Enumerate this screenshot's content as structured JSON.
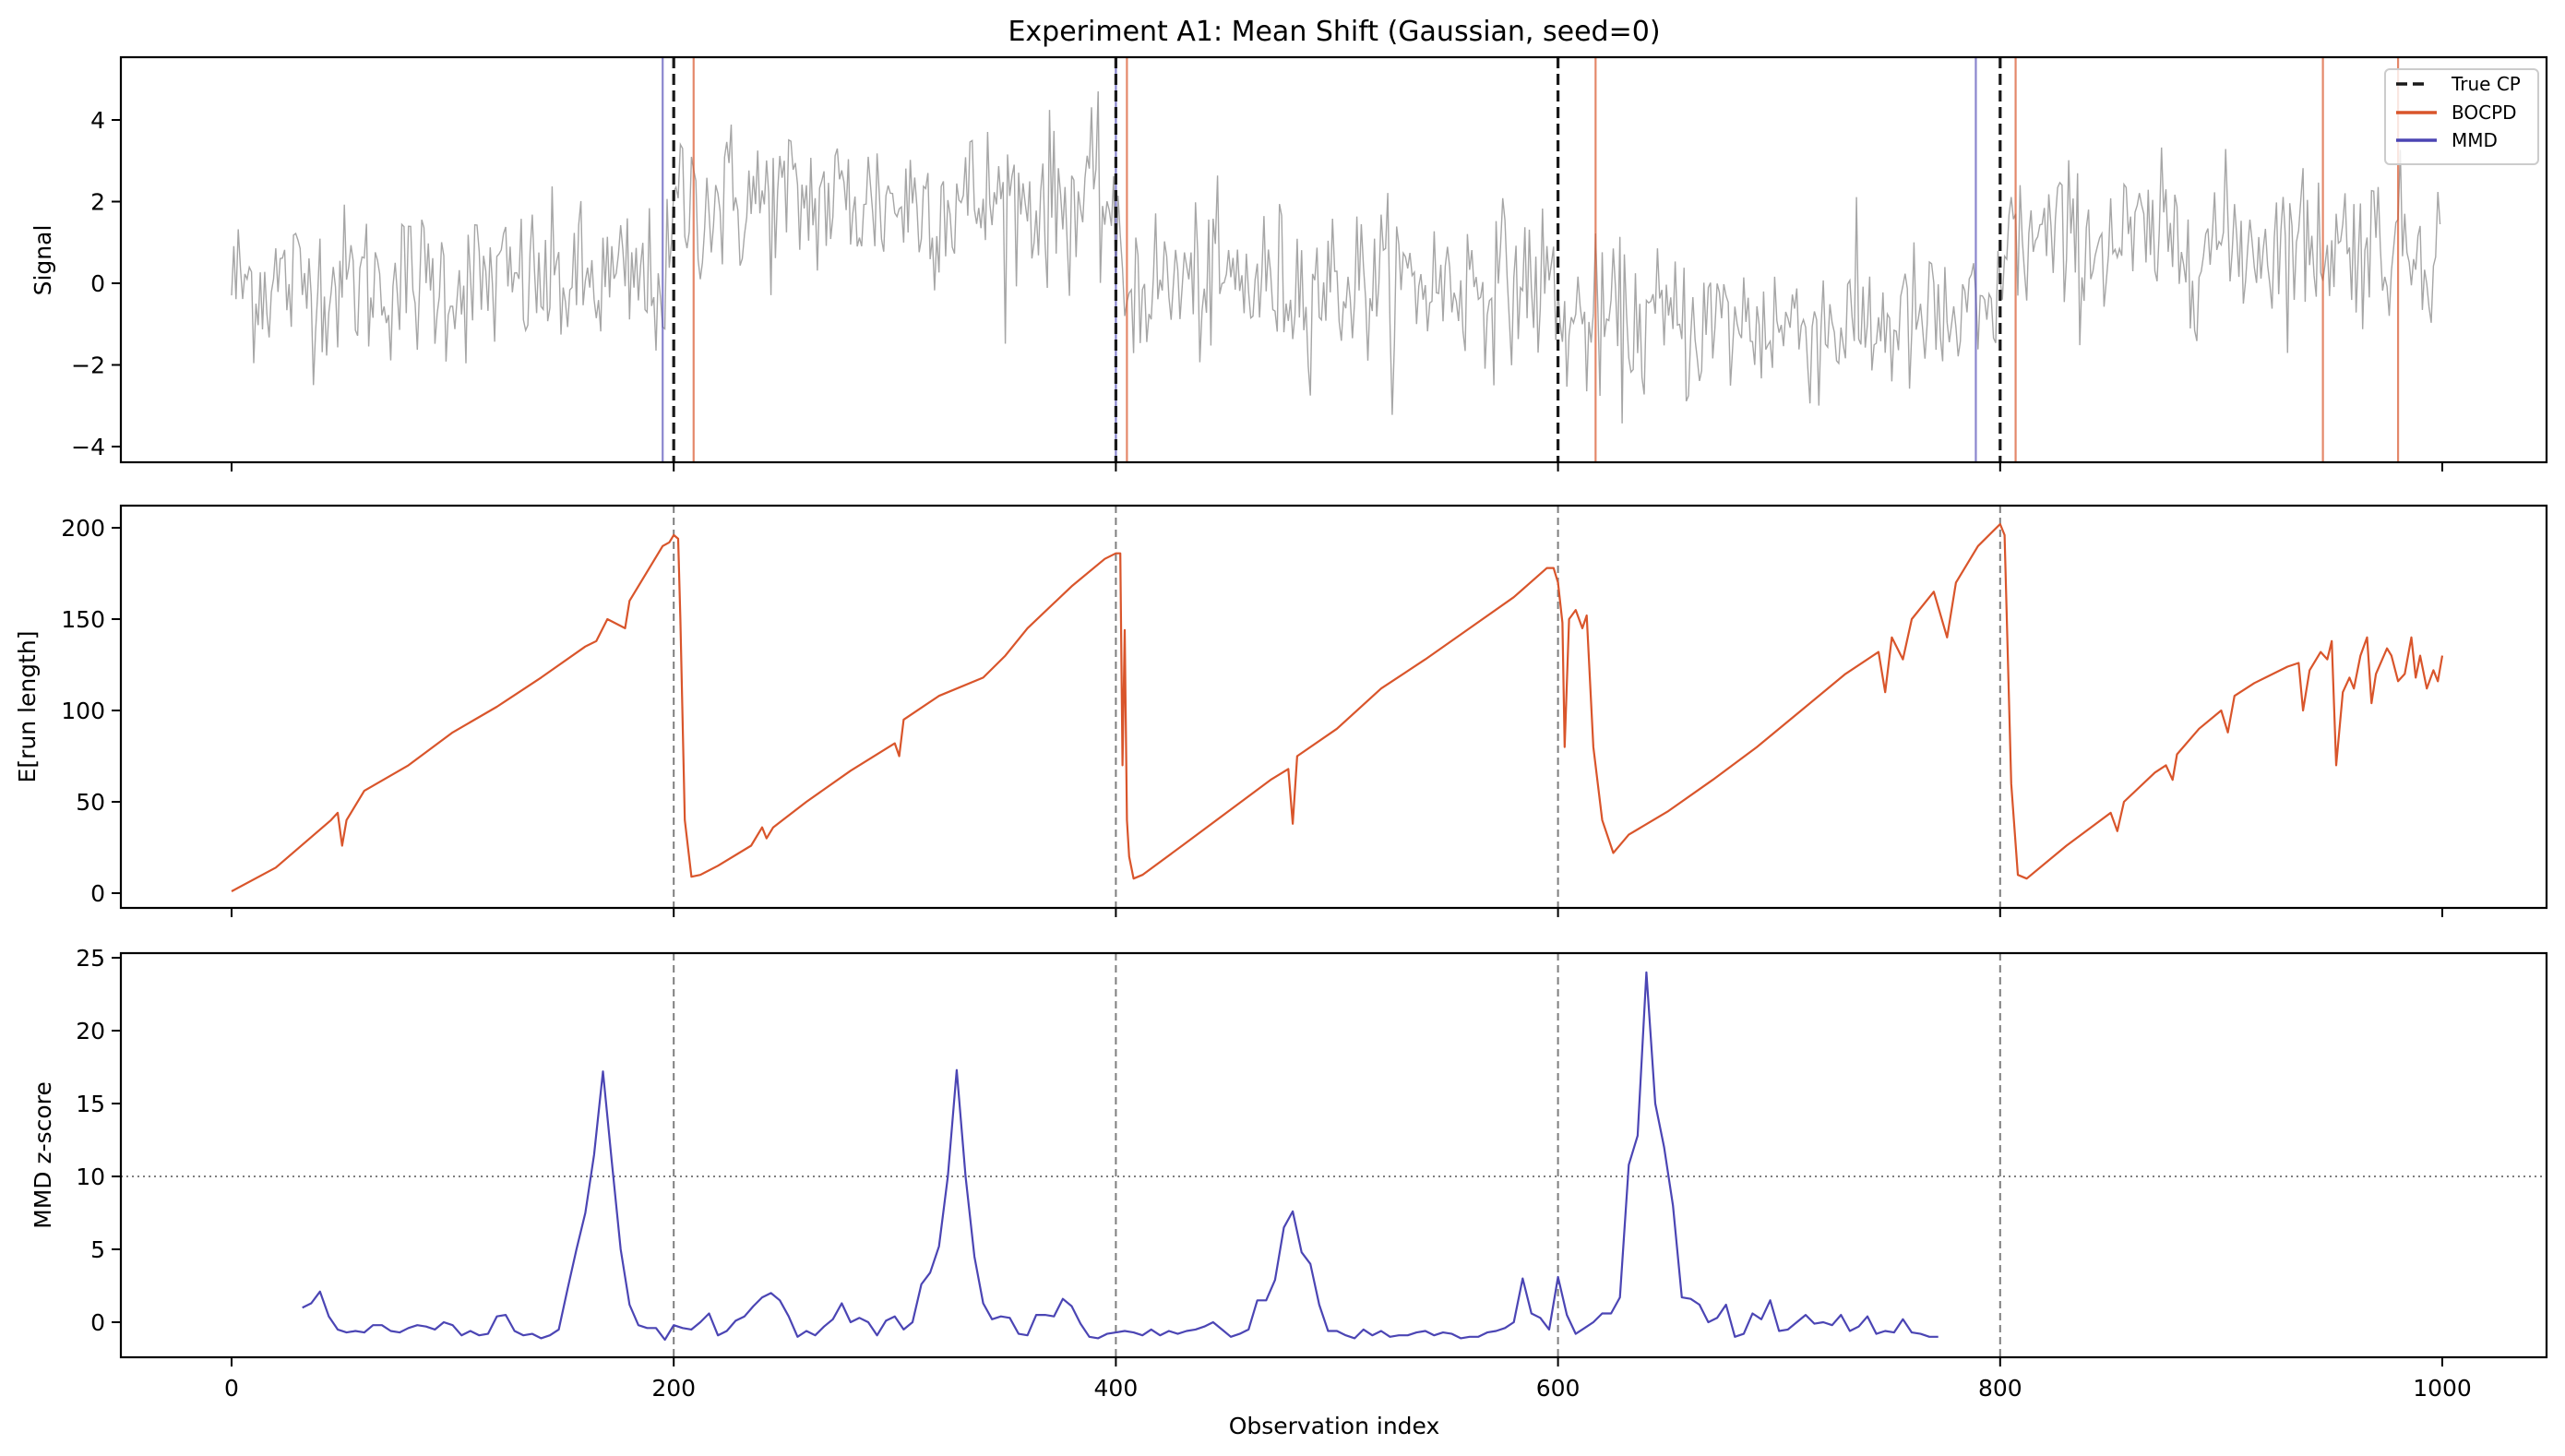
{
  "figure": {
    "title": "Experiment A1: Mean Shift (Gaussian, seed=0)",
    "xlabel": "Observation index",
    "colors": {
      "signal": "#a6a6a6",
      "bocpd": "#d9552b",
      "mmd": "#4b45b4",
      "true_cp": "#1a1a1a",
      "cp_guide": "#7f7f7f",
      "threshold": "#7f7f7f"
    }
  },
  "legend": {
    "items": [
      {
        "label": "True CP",
        "style": "dashed",
        "color": "#1a1a1a"
      },
      {
        "label": "BOCPD",
        "style": "solid",
        "color": "#d9552b"
      },
      {
        "label": "MMD",
        "style": "solid",
        "color": "#4b45b4"
      }
    ]
  },
  "chart_data": [
    {
      "type": "line",
      "panel": "signal",
      "title": "Experiment A1: Mean Shift (Gaussian, seed=0)",
      "xlabel": "",
      "ylabel": "Signal",
      "xlim": [
        -50,
        1050
      ],
      "ylim": [
        -4.3,
        5.5
      ],
      "xticks": [
        0,
        200,
        400,
        600,
        800,
        1000
      ],
      "yticks": [
        -4,
        -2,
        0,
        2,
        4
      ],
      "ytick_labels": [
        "−4",
        "−2",
        "0",
        "2",
        "4"
      ],
      "n_points": 1000,
      "segments": [
        {
          "start": 0,
          "end": 200,
          "mean": 0.0,
          "std": 0.95
        },
        {
          "start": 200,
          "end": 400,
          "mean": 2.0,
          "std": 1.0
        },
        {
          "start": 400,
          "end": 600,
          "mean": 0.0,
          "std": 0.95
        },
        {
          "start": 600,
          "end": 800,
          "mean": -1.0,
          "std": 0.95
        },
        {
          "start": 800,
          "end": 1000,
          "mean": 1.0,
          "std": 0.95
        }
      ],
      "true_change_points": [
        200,
        400,
        600,
        800
      ],
      "bocpd_detections": [
        209,
        405,
        617,
        807,
        946,
        980
      ],
      "mmd_detections": [
        195,
        400,
        789
      ],
      "grid": false,
      "legend_position": "upper right"
    },
    {
      "type": "line",
      "panel": "run_length",
      "series": [
        {
          "name": "E[run length]",
          "color": "#d9552b"
        }
      ],
      "xlabel": "",
      "ylabel": "E[run length]",
      "xlim": [
        -50,
        1050
      ],
      "ylim": [
        -7,
        213
      ],
      "xticks": [
        0,
        200,
        400,
        600,
        800,
        1000
      ],
      "yticks": [
        0,
        50,
        100,
        150,
        200
      ],
      "keypoints": [
        [
          0,
          1
        ],
        [
          20,
          14
        ],
        [
          45,
          40
        ],
        [
          48,
          44
        ],
        [
          50,
          26
        ],
        [
          52,
          40
        ],
        [
          60,
          56
        ],
        [
          80,
          70
        ],
        [
          100,
          88
        ],
        [
          120,
          102
        ],
        [
          140,
          118
        ],
        [
          160,
          135
        ],
        [
          165,
          138
        ],
        [
          170,
          150
        ],
        [
          178,
          145
        ],
        [
          180,
          160
        ],
        [
          195,
          190
        ],
        [
          198,
          192
        ],
        [
          200,
          196
        ],
        [
          202,
          194
        ],
        [
          203,
          150
        ],
        [
          205,
          40
        ],
        [
          208,
          9
        ],
        [
          212,
          10
        ],
        [
          220,
          15
        ],
        [
          235,
          26
        ],
        [
          240,
          36
        ],
        [
          242,
          30
        ],
        [
          245,
          36
        ],
        [
          260,
          50
        ],
        [
          280,
          67
        ],
        [
          300,
          82
        ],
        [
          302,
          75
        ],
        [
          304,
          95
        ],
        [
          320,
          108
        ],
        [
          340,
          118
        ],
        [
          350,
          130
        ],
        [
          360,
          145
        ],
        [
          380,
          168
        ],
        [
          395,
          183
        ],
        [
          400,
          186
        ],
        [
          402,
          186
        ],
        [
          403,
          70
        ],
        [
          404,
          144
        ],
        [
          405,
          40
        ],
        [
          406,
          20
        ],
        [
          408,
          8
        ],
        [
          412,
          10
        ],
        [
          430,
          26
        ],
        [
          450,
          44
        ],
        [
          470,
          62
        ],
        [
          478,
          68
        ],
        [
          480,
          38
        ],
        [
          482,
          75
        ],
        [
          500,
          90
        ],
        [
          520,
          112
        ],
        [
          540,
          128
        ],
        [
          560,
          145
        ],
        [
          580,
          162
        ],
        [
          595,
          178
        ],
        [
          598,
          178
        ],
        [
          600,
          170
        ],
        [
          602,
          148
        ],
        [
          603,
          80
        ],
        [
          605,
          150
        ],
        [
          608,
          155
        ],
        [
          611,
          145
        ],
        [
          613,
          152
        ],
        [
          616,
          80
        ],
        [
          620,
          40
        ],
        [
          625,
          22
        ],
        [
          632,
          32
        ],
        [
          650,
          45
        ],
        [
          670,
          62
        ],
        [
          690,
          80
        ],
        [
          710,
          100
        ],
        [
          730,
          120
        ],
        [
          745,
          132
        ],
        [
          748,
          110
        ],
        [
          751,
          140
        ],
        [
          756,
          128
        ],
        [
          760,
          150
        ],
        [
          770,
          165
        ],
        [
          776,
          140
        ],
        [
          780,
          170
        ],
        [
          790,
          190
        ],
        [
          800,
          202
        ],
        [
          802,
          196
        ],
        [
          805,
          60
        ],
        [
          808,
          10
        ],
        [
          812,
          8
        ],
        [
          830,
          26
        ],
        [
          850,
          44
        ],
        [
          853,
          34
        ],
        [
          856,
          50
        ],
        [
          870,
          66
        ],
        [
          875,
          70
        ],
        [
          878,
          62
        ],
        [
          880,
          76
        ],
        [
          890,
          90
        ],
        [
          900,
          100
        ],
        [
          903,
          88
        ],
        [
          906,
          108
        ],
        [
          915,
          115
        ],
        [
          920,
          118
        ],
        [
          930,
          124
        ],
        [
          935,
          126
        ],
        [
          937,
          100
        ],
        [
          940,
          122
        ],
        [
          945,
          132
        ],
        [
          948,
          128
        ],
        [
          950,
          138
        ],
        [
          952,
          70
        ],
        [
          955,
          110
        ],
        [
          958,
          118
        ],
        [
          960,
          112
        ],
        [
          963,
          130
        ],
        [
          966,
          140
        ],
        [
          968,
          104
        ],
        [
          970,
          120
        ],
        [
          975,
          134
        ],
        [
          977,
          130
        ],
        [
          980,
          116
        ],
        [
          983,
          120
        ],
        [
          986,
          140
        ],
        [
          988,
          118
        ],
        [
          990,
          130
        ],
        [
          993,
          112
        ],
        [
          996,
          122
        ],
        [
          998,
          116
        ],
        [
          1000,
          130
        ]
      ],
      "true_change_points": [
        200,
        400,
        600,
        800
      ]
    },
    {
      "type": "line",
      "panel": "mmd",
      "series": [
        {
          "name": "MMD z-score",
          "color": "#4b45b4"
        }
      ],
      "xlabel": "Observation index",
      "ylabel": "MMD z-score",
      "xlim": [
        -50,
        1050
      ],
      "ylim": [
        -2.4,
        25.3
      ],
      "xticks": [
        0,
        200,
        400,
        600,
        800,
        1000
      ],
      "yticks": [
        0,
        5,
        10,
        15,
        20,
        25
      ],
      "threshold": 10,
      "x_start": 32,
      "x_step": 4,
      "values": [
        1.0,
        1.3,
        2.1,
        0.4,
        -0.5,
        -0.7,
        -0.6,
        -0.7,
        -0.2,
        -0.2,
        -0.6,
        -0.7,
        -0.4,
        -0.2,
        -0.3,
        -0.5,
        0.0,
        -0.2,
        -0.9,
        -0.6,
        -0.9,
        -0.8,
        0.4,
        0.5,
        -0.6,
        -0.9,
        -0.8,
        -1.1,
        -0.9,
        -0.5,
        2.3,
        5.0,
        7.5,
        11.5,
        17.2,
        11.0,
        5.0,
        1.2,
        -0.2,
        -0.4,
        -0.4,
        -1.2,
        -0.2,
        -0.4,
        -0.5,
        0.0,
        0.6,
        -0.9,
        -0.6,
        0.1,
        0.4,
        1.1,
        1.7,
        2.0,
        1.5,
        0.4,
        -1.0,
        -0.6,
        -0.9,
        -0.3,
        0.2,
        1.3,
        0.0,
        0.3,
        0.0,
        -0.9,
        0.1,
        0.4,
        -0.5,
        0.0,
        2.6,
        3.4,
        5.2,
        10.0,
        17.3,
        10.0,
        4.5,
        1.3,
        0.2,
        0.4,
        0.3,
        -0.8,
        -0.9,
        0.5,
        0.5,
        0.4,
        1.6,
        1.1,
        -0.1,
        -1.0,
        -1.1,
        -0.8,
        -0.7,
        -0.6,
        -0.7,
        -0.9,
        -0.5,
        -0.9,
        -0.6,
        -0.8,
        -0.6,
        -0.5,
        -0.3,
        0.0,
        -0.5,
        -1.0,
        -0.8,
        -0.5,
        1.5,
        1.5,
        2.9,
        6.5,
        7.6,
        4.8,
        4.0,
        1.2,
        -0.6,
        -0.6,
        -0.9,
        -1.1,
        -0.5,
        -0.9,
        -0.6,
        -1.0,
        -0.9,
        -0.9,
        -0.7,
        -0.6,
        -0.9,
        -0.7,
        -0.8,
        -1.1,
        -1.0,
        -1.0,
        -0.7,
        -0.6,
        -0.4,
        0.0,
        3.0,
        0.6,
        0.3,
        -0.5,
        3.1,
        0.5,
        -0.8,
        -0.4,
        0.0,
        0.6,
        0.6,
        1.7,
        10.8,
        12.8,
        24.0,
        15.0,
        12.0,
        8.0,
        1.7,
        1.6,
        1.2,
        0.0,
        0.3,
        1.2,
        -1.0,
        -0.8,
        0.6,
        0.2,
        1.5,
        -0.6,
        -0.5,
        0.0,
        0.5,
        -0.1,
        0.0,
        -0.2,
        0.5,
        -0.6,
        -0.3,
        0.4,
        -0.8,
        -0.6,
        -0.7,
        0.2,
        -0.7,
        -0.8,
        -1.0,
        -1.0
      ],
      "true_change_points": [
        200,
        400,
        600,
        800
      ]
    }
  ]
}
